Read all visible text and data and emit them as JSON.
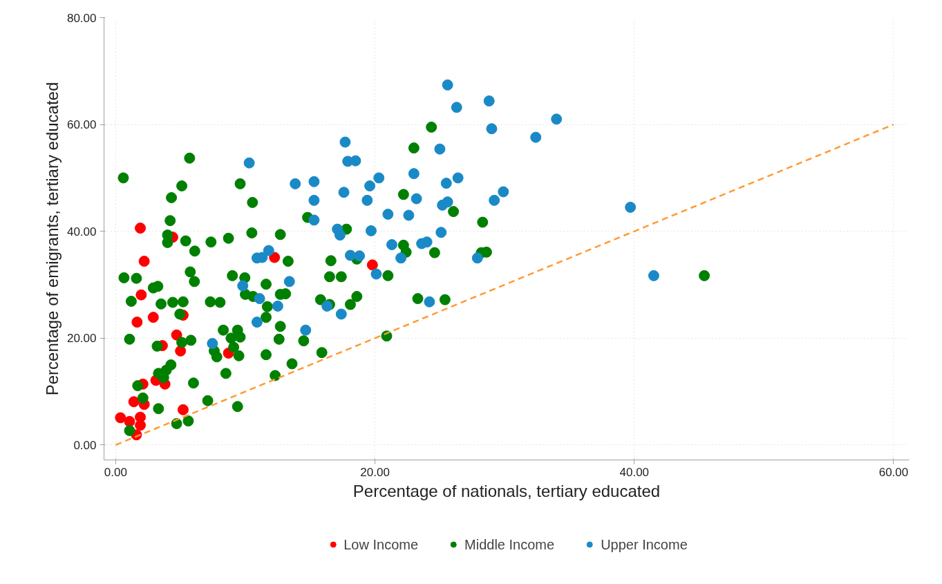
{
  "chart_data": {
    "type": "scatter",
    "xlabel": "Percentage of nationals, tertiary educated",
    "ylabel": "Percentage of emigrants, tertiary educated",
    "xlim": [
      -0.9,
      61.2
    ],
    "ylim": [
      -2.8,
      80
    ],
    "xticks": [
      {
        "value": 0,
        "label": "0.00"
      },
      {
        "value": 20,
        "label": "20.00"
      },
      {
        "value": 40,
        "label": "40.00"
      },
      {
        "value": 60,
        "label": "60.00"
      }
    ],
    "yticks": [
      {
        "value": 0,
        "label": "0.00"
      },
      {
        "value": 20,
        "label": "20.00"
      },
      {
        "value": 40,
        "label": "40.00"
      },
      {
        "value": 60,
        "label": "60.00"
      },
      {
        "value": 80,
        "label": "80.00"
      }
    ],
    "grid": true,
    "legend": "bottom",
    "marker": "circle",
    "series": [
      {
        "name": "Low Income",
        "color": "#ff0000",
        "x": [
          1.9,
          2.2,
          2.9,
          3.1,
          3.6,
          3.8,
          4.4,
          4.7,
          5.0,
          5.2,
          5.2,
          8.7,
          12.25,
          1.97,
          1.65,
          2.1,
          1.4,
          2.2,
          0.37,
          1.07,
          1.9,
          1.9,
          1.6,
          19.8
        ],
        "values": [
          40.6,
          34.4,
          23.9,
          12.1,
          18.6,
          11.4,
          38.9,
          20.6,
          17.6,
          24.3,
          6.6,
          17.2,
          35.1,
          28.1,
          23.0,
          11.4,
          8.1,
          7.6,
          5.1,
          4.4,
          5.2,
          3.7,
          1.9,
          33.7
        ]
      },
      {
        "name": "Middle Income",
        "color": "#008000",
        "x": [
          0.59,
          5.1,
          4.3,
          4.2,
          4.0,
          4.0,
          5.4,
          6.1,
          7.35,
          8.7,
          10.5,
          12.7,
          9.6,
          10.55,
          0.64,
          1.6,
          2.9,
          3.25,
          1.2,
          3.5,
          4.4,
          5.2,
          5.75,
          6.07,
          7.3,
          8.05,
          9.0,
          9.96,
          10.0,
          10.6,
          11.6,
          11.7,
          12.7,
          11.6,
          12.7,
          12.6,
          11.6,
          12.3,
          4.95,
          1.07,
          5.1,
          5.8,
          3.2,
          7.6,
          7.8,
          8.3,
          9.4,
          8.9,
          9.6,
          9.1,
          9.5,
          8.5,
          4.26,
          3.9,
          3.3,
          3.7,
          6.0,
          1.7,
          2.1,
          3.3,
          7.1,
          9.4,
          1.07,
          4.7,
          5.6,
          5.7,
          23.0,
          22.2,
          26.05,
          14.8,
          17.8,
          22.2,
          22.4,
          24.6,
          13.3,
          16.6,
          18.6,
          21.0,
          16.5,
          17.4,
          13.1,
          15.8,
          16.5,
          18.6,
          18.1,
          23.3,
          25.4,
          14.5,
          15.9,
          13.6,
          20.9,
          24.35,
          28.3,
          28.2,
          28.6,
          45.4
        ],
        "values": [
          50.0,
          48.5,
          46.3,
          42.0,
          39.3,
          37.9,
          38.2,
          36.3,
          38.0,
          38.7,
          39.7,
          39.4,
          48.9,
          45.4,
          31.3,
          31.2,
          29.4,
          29.7,
          26.9,
          26.4,
          26.7,
          26.8,
          32.4,
          30.6,
          26.8,
          26.7,
          31.7,
          31.3,
          28.2,
          27.8,
          30.1,
          25.9,
          28.2,
          23.9,
          22.2,
          19.8,
          16.9,
          13.0,
          24.5,
          19.8,
          19.2,
          19.6,
          18.5,
          17.6,
          16.5,
          21.5,
          21.5,
          20.0,
          20.2,
          18.3,
          16.7,
          13.4,
          15.0,
          14.0,
          13.4,
          12.6,
          11.6,
          11.1,
          8.8,
          6.8,
          8.3,
          7.2,
          2.7,
          4.0,
          4.5,
          53.7,
          55.6,
          46.9,
          43.7,
          42.6,
          40.4,
          37.4,
          36.1,
          36.0,
          34.4,
          34.5,
          34.8,
          31.7,
          31.5,
          31.5,
          28.3,
          27.2,
          26.3,
          27.8,
          26.3,
          27.4,
          27.2,
          19.5,
          17.3,
          15.2,
          20.4,
          59.5,
          41.7,
          36.0,
          36.1,
          31.7
        ]
      },
      {
        "name": "Upper Income",
        "color": "#1a8ac6",
        "x": [
          10.3,
          10.9,
          11.3,
          11.8,
          9.8,
          11.1,
          12.5,
          10.9,
          7.46,
          17.7,
          17.9,
          18.5,
          25.0,
          13.85,
          15.3,
          15.3,
          17.6,
          19.6,
          20.3,
          19.4,
          23.0,
          23.2,
          25.5,
          26.4,
          25.2,
          25.6,
          21.0,
          22.6,
          15.3,
          17.1,
          17.3,
          19.7,
          25.1,
          21.3,
          22.0,
          23.6,
          24.0,
          18.1,
          18.8,
          20.1,
          13.4,
          16.3,
          17.4,
          24.2,
          14.65,
          27.9,
          25.6,
          26.3,
          28.8,
          29.0,
          32.4,
          34.0,
          29.9,
          29.2,
          39.7,
          41.5
        ],
        "values": [
          52.8,
          35.0,
          35.1,
          36.4,
          29.8,
          27.4,
          26.0,
          23.0,
          19.0,
          56.7,
          53.1,
          53.2,
          55.4,
          48.9,
          49.3,
          45.8,
          47.3,
          48.5,
          50.0,
          45.8,
          50.8,
          46.1,
          49.0,
          50.0,
          44.9,
          45.5,
          43.2,
          43.0,
          42.1,
          40.4,
          39.3,
          40.1,
          39.8,
          37.5,
          35.0,
          37.7,
          38.0,
          35.5,
          35.4,
          32.0,
          30.6,
          26.0,
          24.5,
          26.8,
          21.5,
          35.0,
          67.4,
          63.2,
          64.4,
          59.2,
          57.6,
          61.0,
          47.4,
          45.8,
          44.5,
          31.7
        ]
      },
      {
        "type": "line",
        "color": "#ff9933",
        "line_style": "dashed",
        "marker": "none",
        "x": [
          0,
          60
        ],
        "values": [
          0,
          60
        ]
      }
    ]
  }
}
